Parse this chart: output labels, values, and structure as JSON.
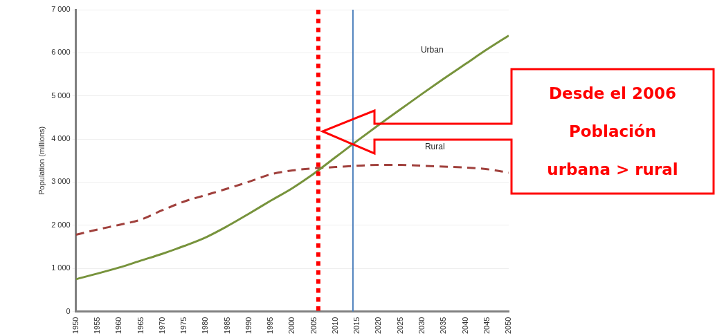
{
  "chart_data": {
    "type": "line",
    "ylabel": "Population (millions)",
    "x": [
      1950,
      1955,
      1960,
      1965,
      1970,
      1975,
      1980,
      1985,
      1990,
      1995,
      2000,
      2005,
      2010,
      2015,
      2020,
      2025,
      2030,
      2035,
      2040,
      2045,
      2050
    ],
    "series": [
      {
        "name": "Urban",
        "color": "#77933c",
        "line_style": "solid",
        "values": [
          750,
          880,
          1020,
          1180,
          1340,
          1520,
          1720,
          1980,
          2270,
          2570,
          2860,
          3200,
          3580,
          3960,
          4330,
          4690,
          5050,
          5400,
          5740,
          6080,
          6400
        ]
      },
      {
        "name": "Rural",
        "color": "#a0403c",
        "line_style": "dashed",
        "values": [
          1780,
          1900,
          2010,
          2130,
          2350,
          2550,
          2700,
          2850,
          3010,
          3180,
          3270,
          3320,
          3350,
          3380,
          3400,
          3400,
          3380,
          3360,
          3340,
          3300,
          3220
        ]
      }
    ],
    "xlim": [
      1950,
      2050
    ],
    "xticks": [
      1950,
      1955,
      1960,
      1965,
      1970,
      1975,
      1980,
      1985,
      1990,
      1995,
      2000,
      2005,
      2010,
      2015,
      2020,
      2025,
      2030,
      2035,
      2040,
      2045,
      2050
    ],
    "ylim": [
      0,
      7000
    ],
    "yticks": [
      {
        "value": 0,
        "label": "0"
      },
      {
        "value": 1000,
        "label": "1 000"
      },
      {
        "value": 2000,
        "label": "2 000"
      },
      {
        "value": 3000,
        "label": "3 000"
      },
      {
        "value": 4000,
        "label": "4 000"
      },
      {
        "value": 5000,
        "label": "5 000"
      },
      {
        "value": 6000,
        "label": "6 000"
      },
      {
        "value": 7000,
        "label": "7 000"
      }
    ],
    "grid": "y",
    "legend": false,
    "marker": "none",
    "ref_lines": [
      {
        "axis": "x",
        "value": 2006,
        "color": "#ff0000",
        "line_style": "dotted"
      },
      {
        "axis": "x",
        "value": 2014,
        "color": "#4f81bd",
        "line_style": "solid"
      }
    ],
    "annotations": [
      "Desde el 2006\nPoblación\nurbana > rural"
    ]
  }
}
